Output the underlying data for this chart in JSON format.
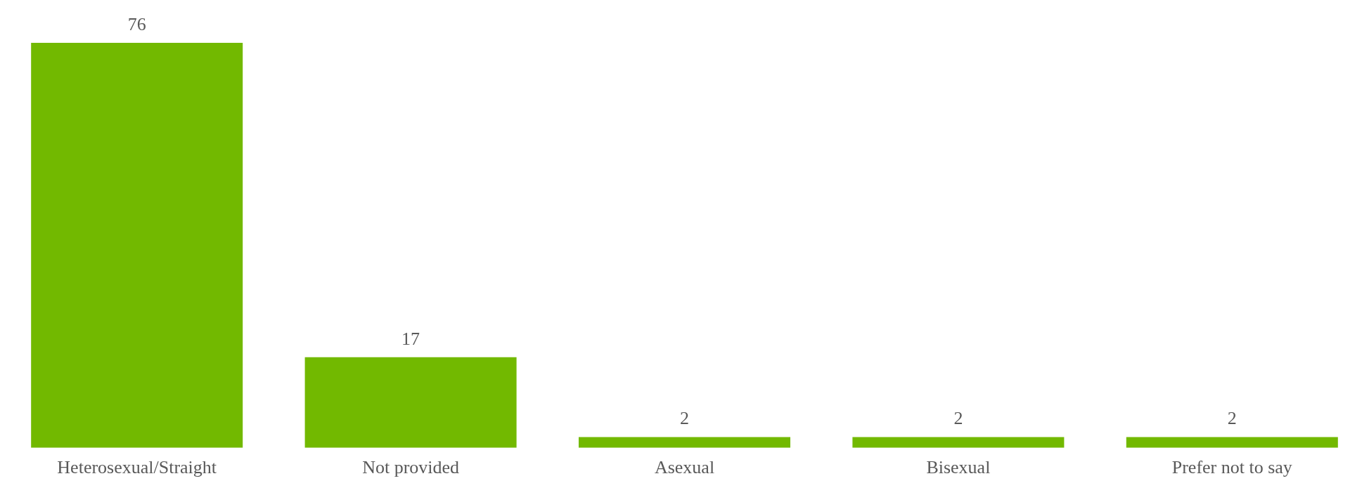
{
  "chart_data": {
    "type": "bar",
    "categories": [
      "Heterosexual/Straight",
      "Not provided",
      "Asexual",
      "Bisexual",
      "Prefer not to say"
    ],
    "values": [
      76,
      17,
      2,
      2,
      2
    ],
    "color": "#72b900",
    "data_labels": true,
    "grid": false,
    "legend": false
  }
}
